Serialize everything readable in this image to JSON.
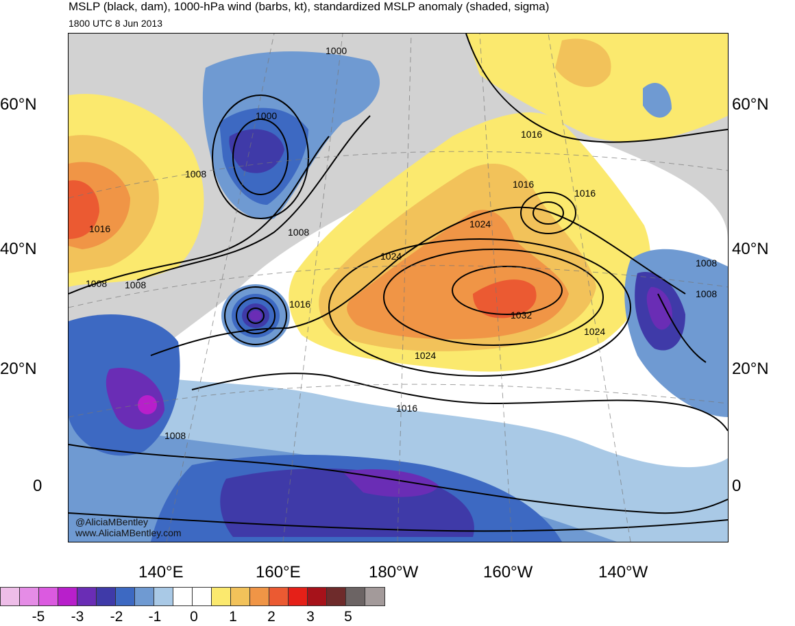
{
  "title": "MSLP (black, dam), 1000-hPa wind (barbs, kt), standardized MSLP anomaly (shaded, sigma)",
  "subtitle": "1800 UTC 8 Jun 2013",
  "lat_labels": [
    "60°N",
    "40°N",
    "20°N",
    "0"
  ],
  "lon_labels": [
    "140°E",
    "160°E",
    "180°W",
    "160°W",
    "140°W"
  ],
  "credits": [
    "@AliciaMBentley",
    "www.AliciaMBentley.com"
  ],
  "isobar_labels": [
    "1000",
    "1000",
    "1008",
    "1008",
    "1008",
    "1008",
    "1016",
    "1016",
    "1016",
    "1016",
    "1016",
    "1016",
    "1024",
    "1024",
    "1024",
    "1024",
    "1032",
    "1008",
    "1008",
    "1008"
  ],
  "colorbar": {
    "colors": [
      "#eebde8",
      "#e58ce6",
      "#db5ae0",
      "#b81fcb",
      "#6a2db5",
      "#3f3aa8",
      "#3d69c2",
      "#6f9ad2",
      "#a9c9e6",
      "#ffffff",
      "#ffffff",
      "#fbe96e",
      "#f2c25a",
      "#f09546",
      "#eb5a32",
      "#e52018",
      "#a6121a",
      "#6e2b2b",
      "#6c6464",
      "#a39a9a"
    ],
    "labels": [
      "-5",
      "-3",
      "-2",
      "-1",
      "0",
      "1",
      "2",
      "3",
      "5"
    ]
  }
}
